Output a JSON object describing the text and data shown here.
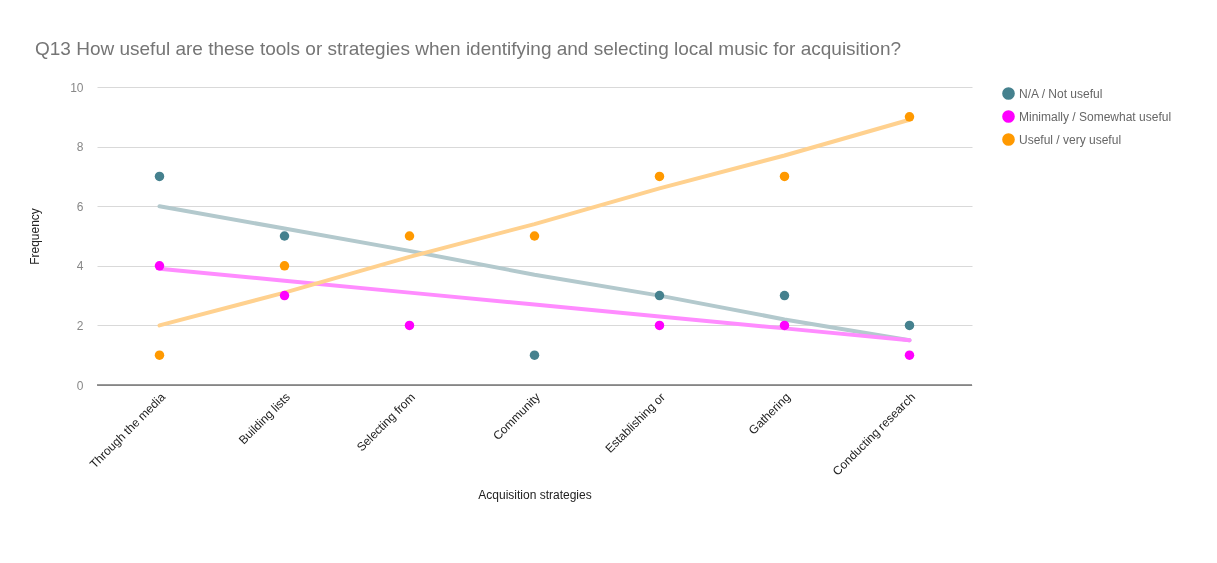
{
  "chart_data": {
    "type": "scatter",
    "title": "Q13 How useful are these tools or strategies when identifying and selecting local music for acquisition?",
    "xlabel": "Acquisition strategies",
    "ylabel": "Frequency",
    "categories": [
      "Through the media",
      "Building lists",
      "Selecting from",
      "Community",
      "Establishing or",
      "Gathering",
      "Conducting research"
    ],
    "series": [
      {
        "name": "N/A / Not useful",
        "color": "#45818e",
        "values": [
          7,
          5,
          null,
          1,
          3,
          3,
          2
        ]
      },
      {
        "name": "Minimally / Somewhat useful",
        "color": "#ff00ff",
        "values": [
          4,
          3,
          2,
          null,
          2,
          2,
          1
        ]
      },
      {
        "name": "Useful / very useful",
        "color": "#ff9900",
        "values": [
          1,
          4,
          5,
          5,
          7,
          7,
          9
        ]
      },
      {
        "type": "line",
        "marker": "none",
        "color": "#b3c9cd",
        "x": [
          "Through the media",
          "Building lists",
          "Selecting from",
          "Community",
          "Establishing or",
          "Gathering",
          "Conducting research"
        ],
        "values": [
          6.0,
          5.25,
          4.5,
          3.7,
          3.0,
          2.2,
          1.5
        ]
      },
      {
        "type": "line",
        "marker": "none",
        "color": "#ff8cff",
        "x": [
          "Through the media",
          "Building lists",
          "Selecting from",
          "Community",
          "Establishing or",
          "Gathering",
          "Conducting research"
        ],
        "values": [
          3.9,
          3.5,
          3.1,
          2.7,
          2.3,
          1.9,
          1.5
        ]
      },
      {
        "type": "line",
        "marker": "none",
        "color": "#ffd18f",
        "x": [
          "Through the media",
          "Building lists",
          "Selecting from",
          "Community",
          "Establishing or",
          "Gathering",
          "Conducting research"
        ],
        "values": [
          2.0,
          3.1,
          4.3,
          5.4,
          6.6,
          7.7,
          8.9
        ]
      }
    ],
    "ylim": [
      0,
      10
    ],
    "yticks": [
      0,
      2,
      4,
      6,
      8,
      10
    ],
    "grid": "y",
    "legend": "top right",
    "marker": "circle"
  }
}
